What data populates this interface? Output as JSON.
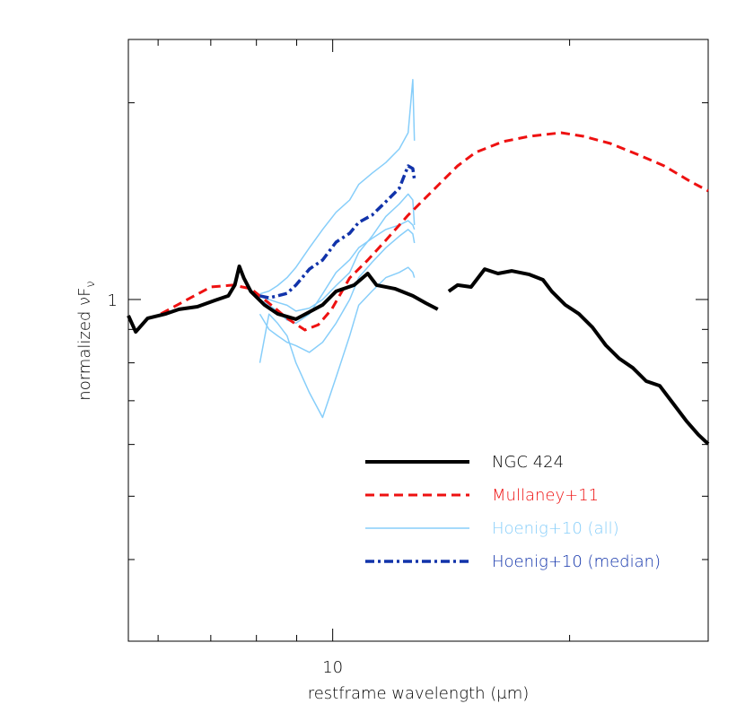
{
  "chart_data": {
    "type": "line",
    "x_label": "restframe wavelength (μm)",
    "y_label": [
      "normalized νF",
      "ν"
    ],
    "xscale": "log",
    "yscale": "log",
    "grid": false,
    "legend": "lower right",
    "xlim": [
      5.5,
      30
    ],
    "ylim": [
      0.3,
      2.5
    ],
    "xticks": [
      10
    ],
    "xminor_ticks": [
      6,
      7,
      8,
      9,
      20,
      30
    ],
    "yticks": [
      1
    ],
    "yminor_ticks": [
      0.3,
      0.4,
      0.5,
      0.6,
      0.7,
      0.8,
      0.9,
      2
    ],
    "series": [
      {
        "name": "NGC 424",
        "color": "#000000",
        "style": "solid",
        "width": 4,
        "x": [
          5.5,
          5.62,
          5.82,
          6.14,
          6.38,
          6.73,
          7.09,
          7.37,
          7.51,
          7.61,
          7.71,
          7.87,
          8.19,
          8.51,
          8.98,
          9.34,
          9.71,
          10.1,
          10.65,
          11.08,
          11.37,
          11.99,
          12.64,
          13.14,
          13.6,
          13.8,
          14.04,
          14.41,
          14.99,
          15.6,
          16.22,
          16.88,
          17.78,
          18.5,
          18.98,
          19.75,
          20.55,
          21.38,
          22.23,
          23.13,
          24.06,
          25.02,
          26.03,
          27.08,
          28.17,
          29.15,
          30.0
        ],
        "values": [
          0.945,
          0.892,
          0.936,
          0.951,
          0.966,
          0.975,
          0.997,
          1.013,
          1.052,
          1.124,
          1.079,
          1.029,
          0.981,
          0.951,
          0.933,
          0.957,
          0.981,
          1.029,
          1.052,
          1.096,
          1.052,
          1.039,
          1.013,
          0.987,
          0.966,
          null,
          1.029,
          1.052,
          1.045,
          1.113,
          1.096,
          1.106,
          1.092,
          1.072,
          1.029,
          0.981,
          0.951,
          0.907,
          0.851,
          0.812,
          0.786,
          0.75,
          0.738,
          0.693,
          0.651,
          0.621,
          0.601
        ]
      },
      {
        "name": "Mullaney+11",
        "color": "#ee1111",
        "style": "dashed",
        "width": 3,
        "x": [
          6.05,
          7.0,
          7.47,
          7.87,
          8.3,
          8.75,
          9.22,
          9.59,
          9.97,
          10.51,
          11.08,
          11.68,
          12.47,
          12.97,
          13.67,
          14.41,
          15.19,
          16.44,
          17.78,
          19.5,
          20.83,
          22.53,
          24.38,
          26.38,
          28.55,
          30.0
        ],
        "values": [
          0.951,
          1.045,
          1.052,
          1.039,
          0.987,
          0.936,
          0.898,
          0.915,
          0.966,
          1.079,
          1.149,
          1.232,
          1.346,
          1.411,
          1.503,
          1.601,
          1.679,
          1.744,
          1.777,
          1.8,
          1.777,
          1.733,
          1.668,
          1.601,
          1.513,
          1.466
        ]
      },
      {
        "name": "Hoenig+10 (all)",
        "color": "#87cefa",
        "style": "solid",
        "width": 1.5,
        "x": [
          8.08,
          8.3,
          8.51,
          8.75,
          8.98,
          9.34,
          9.71,
          10.1,
          10.51,
          10.79,
          11.22,
          11.68,
          12.15,
          12.47,
          12.64,
          12.7
        ],
        "values": [
          [
            0.8,
            0.95,
            0.92,
            0.88,
            0.8,
            0.72,
            0.66,
            0.76,
            0.88,
            0.98,
            1.03,
            1.08,
            1.1,
            1.12,
            1.1,
            1.08
          ],
          [
            1.0,
            0.98,
            0.96,
            0.93,
            0.92,
            0.95,
            1.02,
            1.1,
            1.15,
            1.2,
            1.24,
            1.28,
            1.3,
            1.32,
            1.3,
            1.28
          ],
          [
            1.02,
            1.03,
            1.05,
            1.08,
            1.12,
            1.2,
            1.28,
            1.36,
            1.42,
            1.5,
            1.56,
            1.62,
            1.7,
            1.8,
            2.17,
            1.75
          ],
          [
            1.01,
            1.0,
            0.99,
            0.98,
            0.96,
            0.97,
            1.0,
            1.05,
            1.1,
            1.18,
            1.25,
            1.34,
            1.4,
            1.45,
            1.42,
            1.3
          ],
          [
            0.95,
            0.9,
            0.88,
            0.86,
            0.85,
            0.83,
            0.86,
            0.92,
            1.0,
            1.08,
            1.14,
            1.2,
            1.25,
            1.28,
            1.26,
            1.22
          ]
        ]
      },
      {
        "name": "Hoenig+10 (median)",
        "color": "#1133aa",
        "style": "dashdot",
        "width": 3.5,
        "x": [
          8.08,
          8.3,
          8.51,
          8.75,
          8.98,
          9.34,
          9.71,
          10.1,
          10.51,
          10.79,
          11.22,
          11.68,
          12.15,
          12.47,
          12.64,
          12.7
        ],
        "values": [
          1.013,
          1.006,
          1.013,
          1.022,
          1.052,
          1.113,
          1.149,
          1.224,
          1.263,
          1.312,
          1.346,
          1.411,
          1.479,
          1.601,
          1.586,
          1.527
        ]
      }
    ]
  }
}
